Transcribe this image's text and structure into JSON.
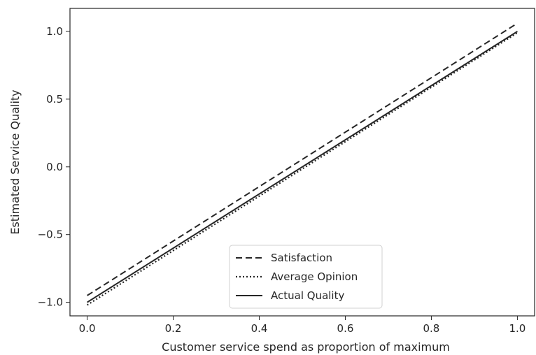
{
  "chart_data": {
    "type": "line",
    "xlabel": "Customer service spend as proportion of maximum",
    "ylabel": "Estimated Service Quality",
    "xlim": [
      -0.04,
      1.04
    ],
    "ylim": [
      -1.1,
      1.17
    ],
    "x_ticks": [
      "0.0",
      "0.2",
      "0.4",
      "0.6",
      "0.8",
      "1.0"
    ],
    "y_ticks": [
      "1.0",
      "0.5",
      "0.0",
      "−0.5",
      "−1.0"
    ],
    "legend_position": "lower-center",
    "grid": false,
    "series": [
      {
        "name": "Satisfaction",
        "style": "dashed",
        "color": "#262626",
        "x": [
          0.0,
          1.0
        ],
        "y": [
          -0.95,
          1.06
        ]
      },
      {
        "name": "Average Opinion",
        "style": "dotted",
        "color": "#262626",
        "x": [
          0.0,
          1.0
        ],
        "y": [
          -1.02,
          0.99
        ]
      },
      {
        "name": "Actual Quality",
        "style": "solid",
        "color": "#262626",
        "x": [
          0.0,
          1.0
        ],
        "y": [
          -1.0,
          1.0
        ]
      }
    ]
  }
}
